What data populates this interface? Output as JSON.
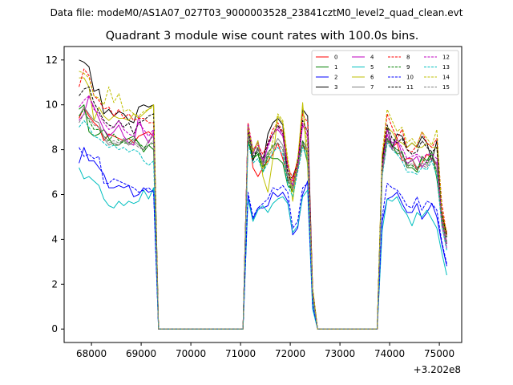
{
  "chart_data": {
    "type": "line",
    "suptitle": "Data file: modeM0/AS1A07_027T03_9000003528_23841cztM0_level2_quad_clean.evt",
    "title": "Quadrant 3 module wise count rates with 100.0s bins.",
    "xlabel": "",
    "ylabel": "",
    "x_offset_label": "+3.202e8",
    "xlim": [
      67450,
      75450
    ],
    "ylim": [
      -0.6,
      12.6
    ],
    "x_ticks": [
      68000,
      69000,
      70000,
      71000,
      72000,
      73000,
      74000,
      75000
    ],
    "x_tick_labels": [
      "68000",
      "69000",
      "70000",
      "71000",
      "72000",
      "73000",
      "74000",
      "75000"
    ],
    "y_ticks": [
      0,
      2,
      4,
      6,
      8,
      10,
      12
    ],
    "y_tick_labels": [
      "0",
      "2",
      "4",
      "6",
      "8",
      "10",
      "12"
    ],
    "legend_position": "upper-right",
    "legend_columns": 4,
    "segments": [
      {
        "start": 67750,
        "end": 69250
      },
      {
        "start": 71150,
        "end": 72650
      },
      {
        "start": 73850,
        "end": 75150
      }
    ],
    "series": [
      {
        "name": "0",
        "color": "#ff0000",
        "dashed": false,
        "seg1": [
          9.4,
          9.9,
          9.5,
          9.2,
          9.0,
          8.4,
          8.7,
          8.6,
          8.5,
          8.4,
          8.5,
          8.3,
          8.6,
          8.7,
          8.8,
          8.6
        ],
        "seg2": [
          9.0,
          7.2,
          6.8,
          7.2,
          7.5,
          7.8,
          8.3,
          7.6,
          6.8,
          6.6,
          7.6,
          8.2,
          7.9,
          1.6,
          0.0
        ],
        "seg3": [
          7.2,
          8.5,
          8.1,
          8.3,
          7.5,
          7.6,
          7.6,
          7.1,
          7.4,
          7.8,
          7.6,
          7.3,
          5.2,
          4.3
        ]
      },
      {
        "name": "1",
        "color": "#008000",
        "dashed": false,
        "seg1": [
          9.8,
          10.0,
          8.8,
          8.6,
          8.7,
          8.9,
          8.5,
          8.2,
          8.2,
          8.4,
          8.5,
          8.6,
          8.3,
          7.9,
          8.2,
          8.0
        ],
        "seg2": [
          8.4,
          7.6,
          7.8,
          7.0,
          7.7,
          7.6,
          7.6,
          7.4,
          6.4,
          6.2,
          7.6,
          8.3,
          7.4,
          1.4,
          0.0
        ],
        "seg3": [
          7.5,
          8.4,
          8.2,
          7.8,
          7.9,
          7.2,
          7.2,
          7.0,
          7.7,
          7.5,
          7.9,
          6.7,
          5.0,
          3.8
        ]
      },
      {
        "name": "2",
        "color": "#0000ff",
        "dashed": false,
        "seg1": [
          7.4,
          8.1,
          7.5,
          7.5,
          7.2,
          6.9,
          6.3,
          6.3,
          6.4,
          6.3,
          6.4,
          5.9,
          6.0,
          6.3,
          6.1,
          6.2
        ],
        "seg2": [
          5.9,
          4.9,
          5.4,
          5.4,
          5.5,
          6.1,
          5.9,
          6.1,
          5.7,
          4.2,
          4.5,
          6.0,
          6.6,
          1.0,
          0.0
        ],
        "seg3": [
          4.8,
          5.8,
          5.9,
          6.1,
          5.6,
          5.2,
          5.2,
          5.6,
          4.9,
          5.2,
          5.6,
          5.0,
          3.8,
          2.8
        ]
      },
      {
        "name": "3",
        "color": "#000000",
        "dashed": false,
        "seg1": [
          12.0,
          11.9,
          11.7,
          10.6,
          10.7,
          9.6,
          9.8,
          9.5,
          9.7,
          9.6,
          9.3,
          9.2,
          9.9,
          10.0,
          9.9,
          10.0
        ],
        "seg2": [
          9.1,
          7.5,
          8.1,
          7.4,
          8.7,
          9.2,
          9.4,
          9.1,
          6.6,
          6.8,
          7.4,
          9.8,
          9.5,
          1.8,
          0.0
        ],
        "seg3": [
          7.6,
          9.0,
          8.1,
          8.7,
          8.6,
          8.1,
          8.3,
          8.1,
          8.6,
          8.3,
          7.5,
          8.4,
          5.0,
          4.2
        ]
      },
      {
        "name": "4",
        "color": "#bf00bf",
        "dashed": false,
        "seg1": [
          9.3,
          9.6,
          10.4,
          9.9,
          9.4,
          8.9,
          8.6,
          8.8,
          9.1,
          8.6,
          8.3,
          8.2,
          9.5,
          8.7,
          8.3,
          8.8
        ],
        "seg2": [
          9.0,
          7.8,
          8.4,
          7.3,
          8.2,
          8.7,
          8.9,
          8.6,
          7.3,
          6.2,
          7.2,
          9.1,
          8.6,
          1.7,
          0.0
        ],
        "seg3": [
          7.0,
          8.7,
          8.0,
          8.5,
          7.8,
          7.4,
          7.5,
          7.7,
          7.2,
          7.5,
          7.6,
          7.4,
          4.6,
          3.6
        ]
      },
      {
        "name": "5",
        "color": "#00bfbf",
        "dashed": false,
        "seg1": [
          7.2,
          6.7,
          6.8,
          6.6,
          6.4,
          5.8,
          5.5,
          5.4,
          5.7,
          5.5,
          5.7,
          5.6,
          5.7,
          6.2,
          5.8,
          6.3
        ],
        "seg2": [
          5.8,
          4.8,
          5.3,
          5.5,
          5.2,
          5.6,
          5.8,
          5.9,
          5.6,
          4.3,
          4.6,
          5.9,
          6.2,
          0.9,
          0.0
        ],
        "seg3": [
          4.4,
          5.8,
          5.7,
          5.9,
          5.4,
          5.1,
          4.6,
          5.2,
          5.0,
          5.3,
          4.9,
          4.5,
          3.4,
          2.4
        ]
      },
      {
        "name": "6",
        "color": "#bfbf00",
        "dashed": false,
        "seg1": [
          11.2,
          11.2,
          10.8,
          9.3,
          9.9,
          9.5,
          9.3,
          9.5,
          9.4,
          9.4,
          9.3,
          9.6,
          9.4,
          9.6,
          9.8,
          10.0
        ],
        "seg2": [
          8.8,
          7.9,
          8.4,
          6.8,
          6.1,
          7.6,
          9.5,
          9.2,
          7.4,
          5.7,
          7.4,
          10.1,
          7.2,
          1.8,
          0.0
        ],
        "seg3": [
          7.8,
          9.0,
          8.8,
          8.4,
          8.3,
          8.1,
          8.3,
          8.1,
          8.1,
          8.3,
          8.1,
          8.1,
          5.0,
          4.1
        ]
      },
      {
        "name": "7",
        "color": "#808080",
        "dashed": false,
        "seg1": [
          9.5,
          9.9,
          9.6,
          9.3,
          9.2,
          8.5,
          8.2,
          8.3,
          8.2,
          8.5,
          8.2,
          8.4,
          8.2,
          8.0,
          8.4,
          8.6
        ],
        "seg2": [
          8.7,
          8.0,
          8.1,
          7.4,
          7.9,
          8.1,
          8.5,
          8.2,
          6.8,
          6.3,
          7.1,
          8.4,
          8.0,
          1.6,
          0.0
        ],
        "seg3": [
          6.9,
          8.5,
          8.1,
          8.0,
          7.8,
          7.3,
          7.6,
          7.2,
          7.4,
          7.3,
          7.8,
          7.3,
          4.8,
          3.9
        ]
      },
      {
        "name": "8",
        "color": "#ff0000",
        "dashed": true,
        "seg1": [
          10.8,
          11.6,
          11.3,
          10.4,
          10.2,
          9.8,
          9.9,
          9.5,
          9.8,
          9.4,
          9.6,
          9.3,
          9.4,
          9.4,
          9.2,
          9.2
        ],
        "seg2": [
          9.2,
          8.0,
          8.2,
          7.8,
          8.3,
          8.9,
          9.2,
          8.8,
          7.3,
          6.7,
          7.5,
          9.6,
          9.2,
          1.8,
          0.0
        ],
        "seg3": [
          7.6,
          9.6,
          9.0,
          8.5,
          8.9,
          8.0,
          7.9,
          8.2,
          8.8,
          8.3,
          8.1,
          8.5,
          5.6,
          4.2
        ]
      },
      {
        "name": "9",
        "color": "#008000",
        "dashed": true,
        "seg1": [
          9.5,
          9.8,
          9.3,
          8.9,
          8.9,
          8.6,
          8.4,
          8.7,
          8.4,
          8.3,
          8.3,
          8.5,
          8.3,
          8.1,
          8.2,
          8.3
        ],
        "seg2": [
          8.6,
          7.6,
          7.9,
          7.2,
          7.8,
          8.2,
          8.3,
          8.0,
          6.6,
          6.1,
          7.4,
          8.4,
          7.8,
          1.5,
          0.0
        ],
        "seg3": [
          7.3,
          8.5,
          8.2,
          8.0,
          7.9,
          7.3,
          7.3,
          7.1,
          7.6,
          7.4,
          7.8,
          7.0,
          4.9,
          3.8
        ]
      },
      {
        "name": "10",
        "color": "#0000ff",
        "dashed": true,
        "seg1": [
          8.1,
          7.7,
          7.8,
          7.6,
          7.7,
          6.5,
          6.5,
          6.7,
          6.6,
          6.5,
          6.4,
          6.3,
          6.1,
          6.2,
          6.3,
          6.1
        ],
        "seg2": [
          6.1,
          5.0,
          5.4,
          5.6,
          5.8,
          6.3,
          6.2,
          6.4,
          6.1,
          4.5,
          4.8,
          6.3,
          6.5,
          1.1,
          0.0
        ],
        "seg3": [
          5.0,
          6.5,
          6.3,
          6.2,
          5.9,
          5.5,
          5.4,
          5.9,
          5.3,
          5.7,
          5.6,
          5.3,
          3.9,
          2.9
        ]
      },
      {
        "name": "11",
        "color": "#000000",
        "dashed": true,
        "seg1": [
          10.4,
          10.7,
          10.8,
          10.1,
          9.7,
          9.3,
          9.1,
          9.0,
          9.3,
          9.0,
          9.2,
          8.7,
          9.2,
          9.3,
          9.5,
          9.6
        ],
        "seg2": [
          8.9,
          7.7,
          8.0,
          7.6,
          8.3,
          8.7,
          9.1,
          8.7,
          7.0,
          6.4,
          7.4,
          9.3,
          8.8,
          1.7,
          0.0
        ],
        "seg3": [
          7.4,
          9.1,
          8.5,
          8.3,
          8.5,
          8.0,
          7.8,
          7.9,
          8.4,
          8.1,
          7.9,
          8.1,
          5.2,
          4.1
        ]
      },
      {
        "name": "12",
        "color": "#bf00bf",
        "dashed": true,
        "seg1": [
          9.9,
          10.2,
          10.4,
          9.8,
          9.6,
          9.2,
          8.9,
          9.0,
          9.3,
          8.9,
          8.7,
          8.6,
          9.2,
          8.9,
          8.6,
          8.9
        ],
        "seg2": [
          9.1,
          8.0,
          8.3,
          7.5,
          8.1,
          8.7,
          9.0,
          8.7,
          7.2,
          6.4,
          7.3,
          9.2,
          8.8,
          1.7,
          0.0
        ],
        "seg3": [
          7.2,
          8.9,
          8.3,
          8.4,
          8.1,
          7.6,
          7.7,
          7.8,
          7.6,
          7.8,
          7.8,
          7.6,
          4.9,
          3.8
        ]
      },
      {
        "name": "13",
        "color": "#00bfbf",
        "dashed": true,
        "seg1": [
          9.0,
          9.3,
          9.0,
          8.6,
          8.5,
          8.3,
          8.1,
          8.2,
          8.0,
          8.1,
          7.9,
          8.0,
          7.9,
          7.5,
          7.3,
          7.5
        ],
        "seg2": [
          8.3,
          7.4,
          7.6,
          7.0,
          7.4,
          7.9,
          8.1,
          7.8,
          6.4,
          5.9,
          7.0,
          8.1,
          7.6,
          1.4,
          0.0
        ],
        "seg3": [
          6.8,
          8.3,
          8.0,
          7.8,
          7.5,
          7.0,
          7.0,
          6.9,
          7.2,
          7.1,
          7.5,
          6.8,
          4.6,
          3.5
        ]
      },
      {
        "name": "14",
        "color": "#bfbf00",
        "dashed": true,
        "seg1": [
          11.5,
          11.4,
          11.2,
          10.4,
          10.3,
          10.0,
          10.8,
          10.1,
          10.5,
          9.7,
          9.8,
          9.6,
          9.5,
          9.7,
          9.8,
          9.9
        ],
        "seg2": [
          9.0,
          8.0,
          8.3,
          7.2,
          7.4,
          8.4,
          9.6,
          9.3,
          7.6,
          6.1,
          7.6,
          10.0,
          8.0,
          1.8,
          0.0
        ],
        "seg3": [
          7.8,
          9.8,
          9.3,
          8.8,
          9.0,
          8.3,
          8.5,
          8.2,
          8.8,
          8.5,
          8.2,
          8.9,
          5.3,
          4.3
        ]
      },
      {
        "name": "15",
        "color": "#808080",
        "dashed": true,
        "seg1": [
          9.2,
          9.6,
          9.4,
          9.1,
          9.0,
          8.6,
          8.3,
          8.4,
          8.3,
          8.4,
          8.2,
          8.3,
          8.1,
          8.0,
          8.2,
          8.4
        ],
        "seg2": [
          8.6,
          7.8,
          8.0,
          7.3,
          7.7,
          8.0,
          8.3,
          8.0,
          6.7,
          6.2,
          7.1,
          8.3,
          7.9,
          1.5,
          0.0
        ],
        "seg3": [
          6.9,
          8.4,
          8.0,
          7.9,
          7.7,
          7.2,
          7.4,
          7.1,
          7.3,
          7.2,
          7.6,
          7.1,
          4.7,
          3.7
        ]
      }
    ]
  }
}
